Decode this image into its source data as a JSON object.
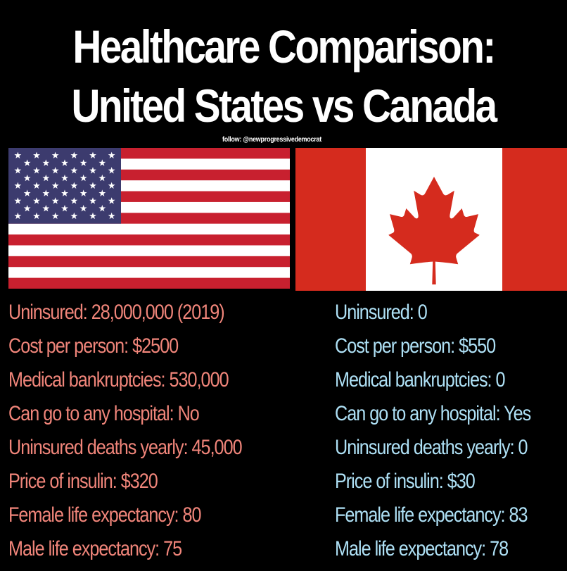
{
  "title": {
    "line1": "Healthcare Comparison:",
    "line2": "United States vs Canada"
  },
  "follow": "follow: @newprogressivedemocrat",
  "colors": {
    "background": "#000000",
    "us_text": "#f0857a",
    "canada_text": "#aee0f5",
    "flag_red": "#d52b1e",
    "us_blue": "#3c3b6e"
  },
  "flags": {
    "us": "us-flag-icon",
    "canada": "canada-flag-icon"
  },
  "united_states": [
    "Uninsured: 28,000,000 (2019)",
    "Cost per person: $2500",
    "Medical bankruptcies: 530,000",
    "Can go to any hospital: No",
    "Uninsured deaths yearly: 45,000",
    "Price of insulin: $320",
    "Female life expectancy: 80",
    "Male life expectancy: 75"
  ],
  "canada": [
    "Uninsured: 0",
    "Cost per person: $550",
    "Medical bankruptcies: 0",
    "Can go to any hospital: Yes",
    "Uninsured deaths yearly: 0",
    "Price of insulin: $30",
    "Female life expectancy: 83",
    "Male life expectancy: 78"
  ]
}
